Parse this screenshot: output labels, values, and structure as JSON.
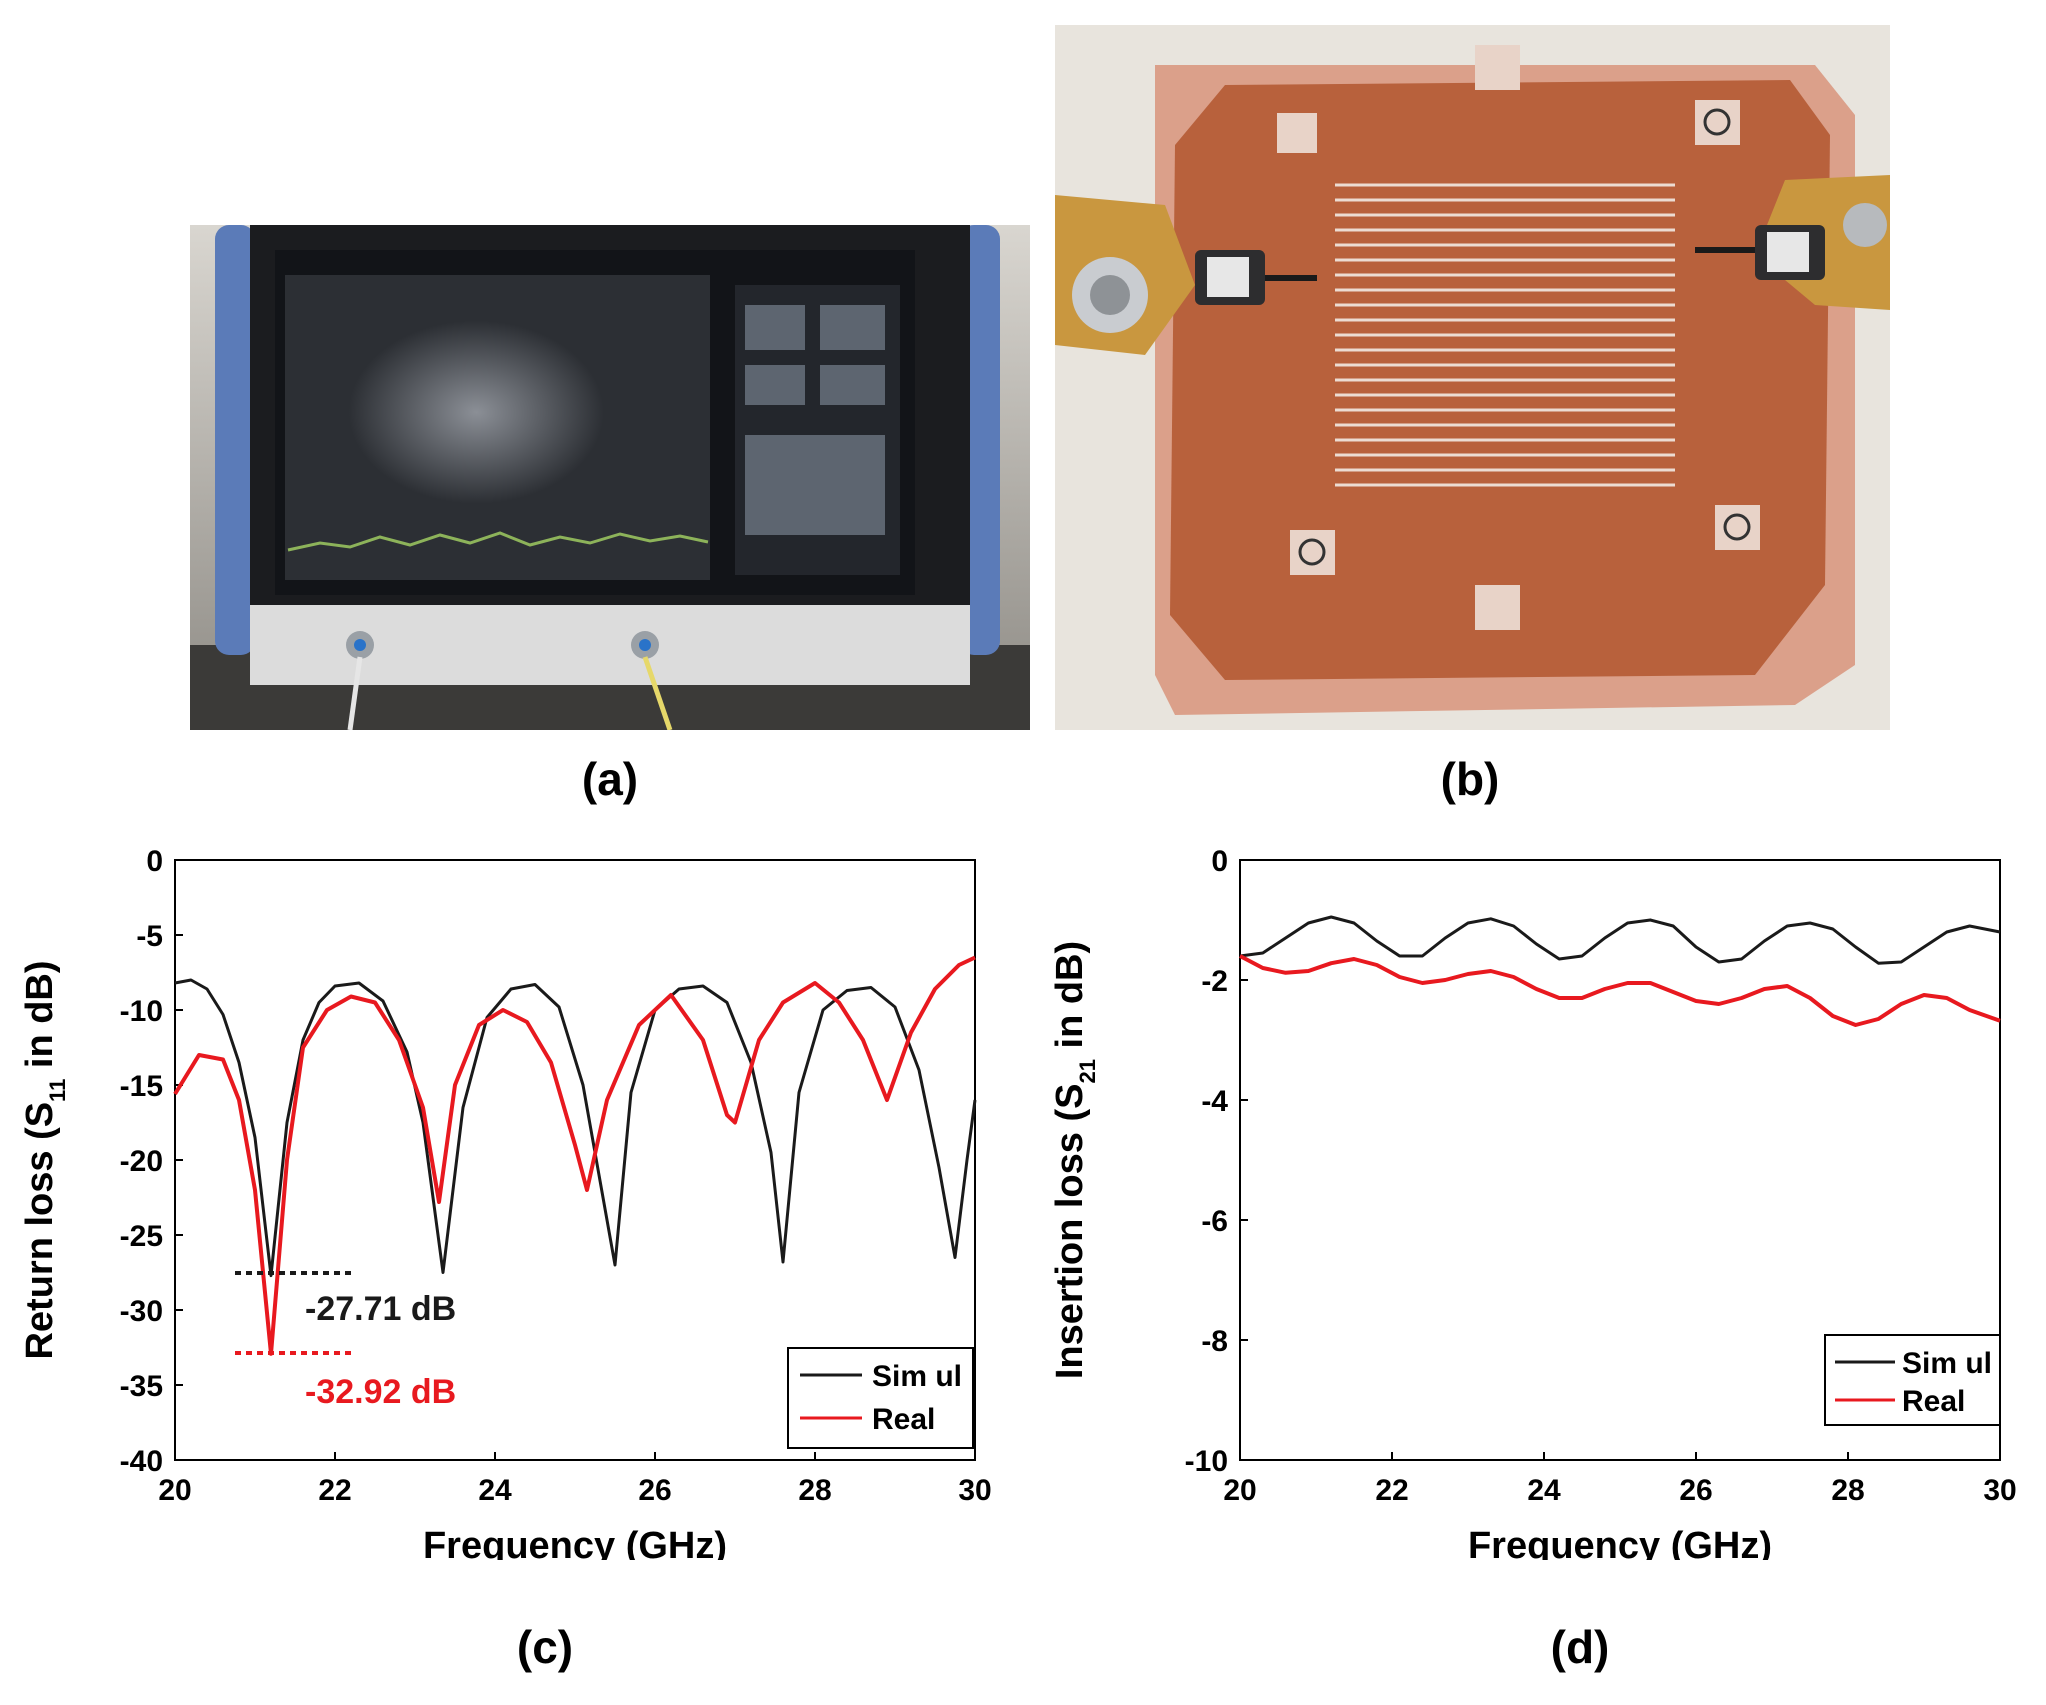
{
  "panels": {
    "a": {
      "label": "(a)"
    },
    "b": {
      "label": "(b)"
    },
    "c": {
      "label": "(c)"
    },
    "d": {
      "label": "(d)"
    }
  },
  "colors": {
    "simul": "#1a1a1a",
    "real": "#e8191f",
    "bench_blue": "#5b7bb8",
    "pcb": "#b8613c",
    "copper": "#dba08a"
  },
  "chart_data": [
    {
      "type": "line",
      "panel": "(c)",
      "xlabel": "Frequency (GHz)",
      "ylabel": "Return loss (S11 in dB)",
      "xlim": [
        20,
        30
      ],
      "ylim": [
        -40,
        0
      ],
      "xticks": [
        "20",
        "22",
        "24",
        "26",
        "28",
        "30"
      ],
      "yticks": [
        "0",
        "-5",
        "-10",
        "-15",
        "-20",
        "-25",
        "-30",
        "-35",
        "-40"
      ],
      "legend": {
        "position": "bottom-right",
        "entries": [
          "Sim ul",
          "Real"
        ]
      },
      "annotations": [
        {
          "text": "-27.71 dB",
          "series": "Simul",
          "x": 21.2,
          "y": -27.71
        },
        {
          "text": "-32.92 dB",
          "series": "Real",
          "x": 21.2,
          "y": -32.92
        }
      ],
      "series": [
        {
          "name": "Sim ul",
          "x": [
            20,
            20.2,
            20.4,
            20.6,
            20.8,
            21.0,
            21.2,
            21.4,
            21.6,
            21.8,
            22.0,
            22.3,
            22.6,
            22.9,
            23.1,
            23.35,
            23.6,
            23.9,
            24.2,
            24.5,
            24.8,
            25.1,
            25.3,
            25.5,
            25.7,
            26.0,
            26.3,
            26.6,
            26.9,
            27.2,
            27.45,
            27.6,
            27.8,
            28.1,
            28.4,
            28.7,
            29.0,
            29.3,
            29.55,
            29.75,
            29.9,
            30.0
          ],
          "y": [
            -8.2,
            -8.0,
            -8.6,
            -10.3,
            -13.5,
            -18.5,
            -27.71,
            -17.5,
            -12.0,
            -9.5,
            -8.4,
            -8.2,
            -9.4,
            -12.8,
            -17.5,
            -27.5,
            -16.5,
            -10.5,
            -8.6,
            -8.3,
            -9.8,
            -15.0,
            -21.0,
            -27.0,
            -15.5,
            -10.0,
            -8.6,
            -8.4,
            -9.5,
            -13.5,
            -19.5,
            -26.8,
            -15.5,
            -10.0,
            -8.7,
            -8.5,
            -9.8,
            -14.0,
            -20.5,
            -26.5,
            -20.0,
            -16.0
          ]
        },
        {
          "name": "Real",
          "x": [
            20,
            20.3,
            20.6,
            20.8,
            21.0,
            21.2,
            21.4,
            21.6,
            21.9,
            22.2,
            22.5,
            22.8,
            23.1,
            23.3,
            23.5,
            23.8,
            24.1,
            24.4,
            24.7,
            25.0,
            25.15,
            25.4,
            25.8,
            26.2,
            26.6,
            26.9,
            27.0,
            27.3,
            27.6,
            28.0,
            28.3,
            28.6,
            28.9,
            29.2,
            29.5,
            29.8,
            30.0
          ],
          "y": [
            -15.6,
            -13.0,
            -13.3,
            -16.0,
            -22.0,
            -32.92,
            -20.0,
            -12.5,
            -10.0,
            -9.1,
            -9.5,
            -12.0,
            -16.5,
            -22.8,
            -15.0,
            -11.0,
            -10.0,
            -10.8,
            -13.5,
            -19.0,
            -22.0,
            -16.0,
            -11.0,
            -9.0,
            -12.0,
            -17.0,
            -17.5,
            -12.0,
            -9.5,
            -8.2,
            -9.5,
            -12.0,
            -16.0,
            -11.5,
            -8.6,
            -7.0,
            -6.5
          ]
        }
      ]
    },
    {
      "type": "line",
      "panel": "(d)",
      "xlabel": "Frequency (GHz)",
      "ylabel": "Insertion loss (S21 in dB)",
      "xlim": [
        20,
        30
      ],
      "ylim": [
        -10,
        0
      ],
      "xticks": [
        "20",
        "22",
        "24",
        "26",
        "28",
        "30"
      ],
      "yticks": [
        "0",
        "-2",
        "-4",
        "-6",
        "-8",
        "-10"
      ],
      "legend": {
        "position": "bottom-right",
        "entries": [
          "Sim ul",
          "Real"
        ]
      },
      "series": [
        {
          "name": "Sim ul",
          "x": [
            20,
            20.3,
            20.6,
            20.9,
            21.2,
            21.5,
            21.8,
            22.1,
            22.4,
            22.7,
            23.0,
            23.3,
            23.6,
            23.9,
            24.2,
            24.5,
            24.8,
            25.1,
            25.4,
            25.7,
            26.0,
            26.3,
            26.6,
            26.9,
            27.2,
            27.5,
            27.8,
            28.1,
            28.4,
            28.7,
            29.0,
            29.3,
            29.6,
            30.0
          ],
          "y": [
            -1.6,
            -1.55,
            -1.3,
            -1.05,
            -0.95,
            -1.05,
            -1.35,
            -1.6,
            -1.6,
            -1.3,
            -1.05,
            -0.98,
            -1.1,
            -1.4,
            -1.65,
            -1.6,
            -1.3,
            -1.05,
            -1.0,
            -1.1,
            -1.45,
            -1.7,
            -1.65,
            -1.35,
            -1.1,
            -1.05,
            -1.15,
            -1.45,
            -1.72,
            -1.7,
            -1.45,
            -1.2,
            -1.1,
            -1.2
          ]
        },
        {
          "name": "Real",
          "x": [
            20,
            20.3,
            20.6,
            20.9,
            21.2,
            21.5,
            21.8,
            22.1,
            22.4,
            22.7,
            23.0,
            23.3,
            23.6,
            23.9,
            24.2,
            24.5,
            24.8,
            25.1,
            25.4,
            25.7,
            26.0,
            26.3,
            26.6,
            26.9,
            27.2,
            27.5,
            27.8,
            28.1,
            28.4,
            28.7,
            29.0,
            29.3,
            29.6,
            30.0
          ],
          "y": [
            -1.6,
            -1.8,
            -1.88,
            -1.85,
            -1.72,
            -1.65,
            -1.75,
            -1.95,
            -2.05,
            -2.0,
            -1.9,
            -1.85,
            -1.95,
            -2.15,
            -2.3,
            -2.3,
            -2.15,
            -2.05,
            -2.05,
            -2.2,
            -2.35,
            -2.4,
            -2.3,
            -2.15,
            -2.1,
            -2.3,
            -2.6,
            -2.75,
            -2.65,
            -2.4,
            -2.25,
            -2.3,
            -2.5,
            -2.68
          ]
        }
      ]
    }
  ]
}
